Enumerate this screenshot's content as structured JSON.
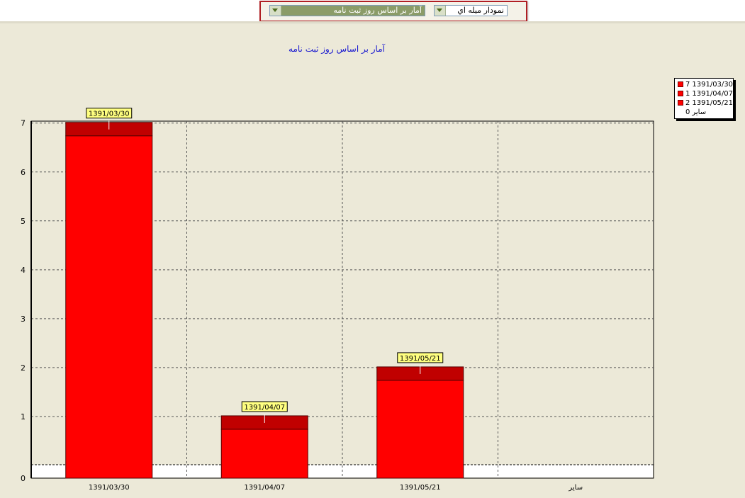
{
  "toolbar": {
    "stat_select_value": "آمار بر اساس  روز ثبت نامه",
    "chart_type_value": "نمودار ميله اي"
  },
  "chart_data": {
    "type": "bar",
    "title": "آمار بر اساس  روز ثبت نامه",
    "categories": [
      "1391/03/30",
      "1391/04/07",
      "1391/05/21",
      "سایر"
    ],
    "values": [
      7,
      1,
      2,
      0
    ],
    "data_labels": [
      "1391/03/30",
      "1391/04/07",
      "1391/05/21",
      ""
    ],
    "ylim": [
      0,
      7.3
    ],
    "yticks": [
      0,
      1,
      2,
      3,
      4,
      5,
      6,
      7
    ],
    "grid": true,
    "legend_position": "top-right",
    "legend": [
      {
        "value": "7",
        "label": "1391/03/30",
        "color": "#ff0000"
      },
      {
        "value": "1",
        "label": "1391/04/07",
        "color": "#ff0000"
      },
      {
        "value": "2",
        "label": "1391/05/21",
        "color": "#ff0000"
      },
      {
        "value": "0",
        "label": "سایر",
        "color": ""
      }
    ],
    "colors": {
      "bar": "#ff0000",
      "bar_top": "#c00000"
    }
  }
}
